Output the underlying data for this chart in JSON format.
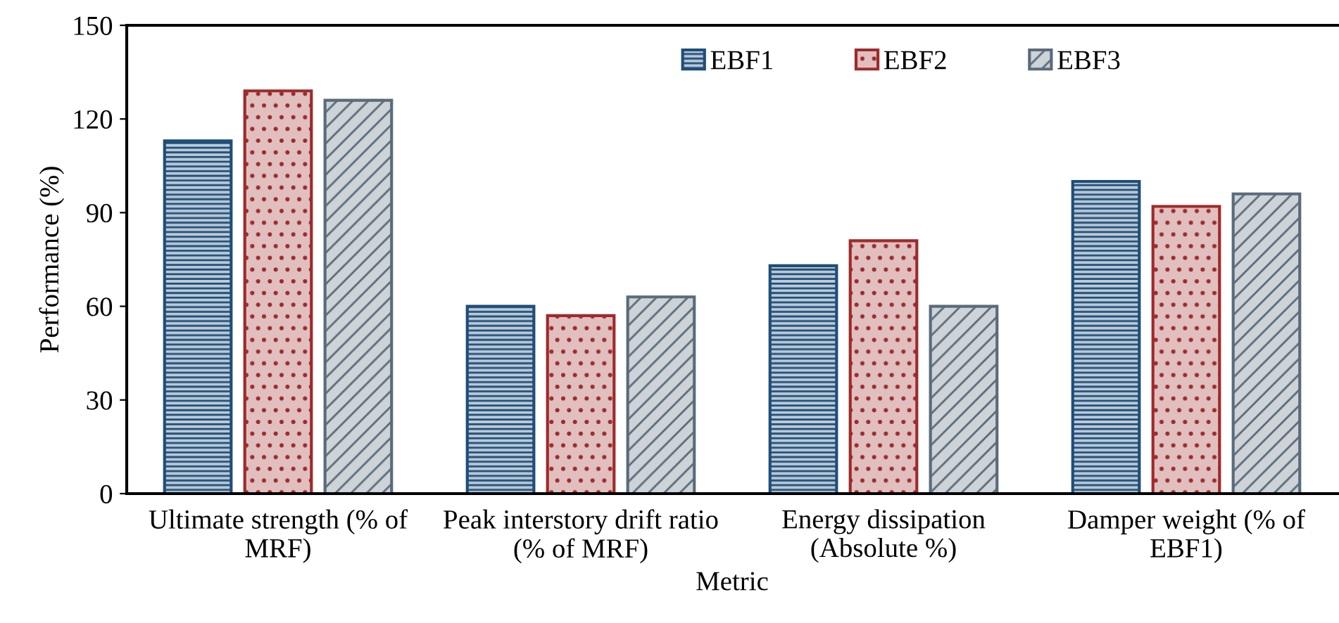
{
  "chart_data": {
    "type": "bar",
    "xlabel": "Metric",
    "ylabel": "Performance (%)",
    "categories": [
      "Ultimate strength (% of\nMRF)",
      "Peak interstory drift ratio\n(% of MRF)",
      "Energy dissipation\n(Absolute %)",
      "Damper weight (% of\nEBF1)"
    ],
    "series": [
      {
        "name": "EBF1",
        "color": "#1f4e79",
        "values": [
          113,
          60,
          73,
          100
        ]
      },
      {
        "name": "EBF2",
        "color": "#9e2a2b",
        "values": [
          129,
          57,
          81,
          92
        ]
      },
      {
        "name": "EBF3",
        "color": "#5a6b7b",
        "values": [
          126,
          63,
          60,
          96
        ]
      }
    ],
    "ylim": [
      0,
      150
    ],
    "yticks": [
      0,
      30,
      60,
      90,
      120,
      150
    ],
    "grid": false,
    "legend": "top"
  }
}
